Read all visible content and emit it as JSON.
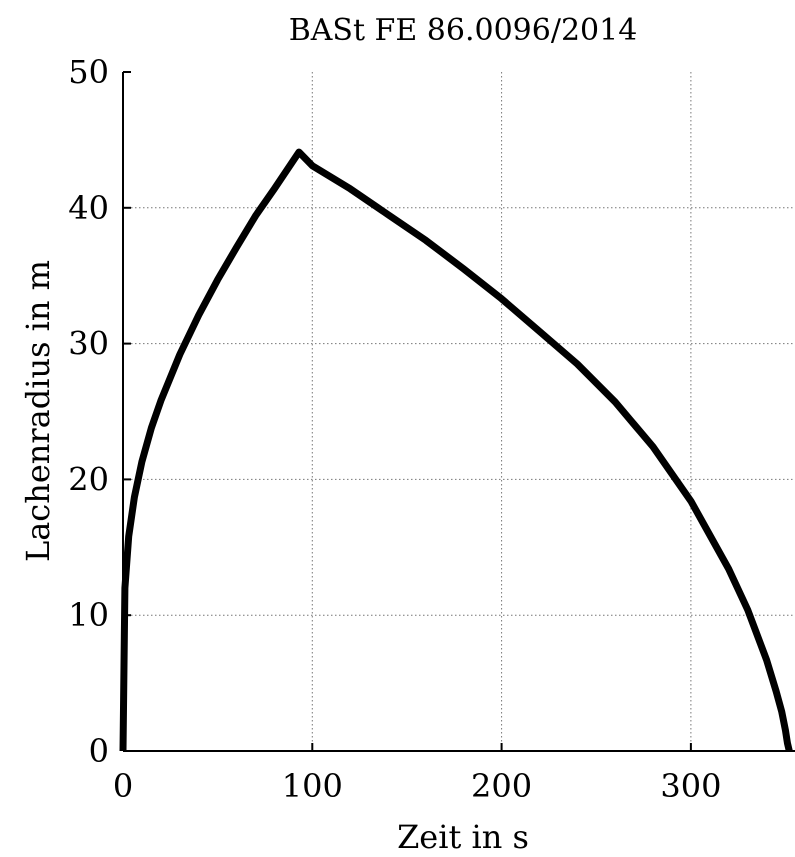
{
  "chart_data": {
    "type": "line",
    "title": "BASt FE 86.0096/2014",
    "xlabel": "Zeit in s",
    "ylabel": "Lachenradius in m",
    "xlim": [
      0,
      355
    ],
    "ylim": [
      0,
      50
    ],
    "xticks": [
      0,
      100,
      200,
      300
    ],
    "yticks": [
      0,
      10,
      20,
      30,
      40,
      50
    ],
    "grid": true,
    "series": [
      {
        "x": [
          0,
          1,
          3,
          6,
          10,
          15,
          20,
          30,
          40,
          50,
          60,
          70,
          80,
          93,
          100,
          120,
          140,
          160,
          180,
          200,
          220,
          240,
          260,
          280,
          300,
          320,
          330,
          340,
          345,
          348,
          350,
          351,
          352
        ],
        "y": [
          0,
          12,
          15.8,
          18.7,
          21.3,
          23.8,
          25.8,
          29.2,
          32.1,
          34.7,
          37.1,
          39.4,
          41.4,
          44.1,
          43.1,
          41.4,
          39.5,
          37.6,
          35.5,
          33.3,
          30.9,
          28.5,
          25.7,
          22.4,
          18.4,
          13.4,
          10.4,
          6.7,
          4.4,
          2.9,
          1.5,
          0.6,
          0
        ]
      }
    ]
  }
}
